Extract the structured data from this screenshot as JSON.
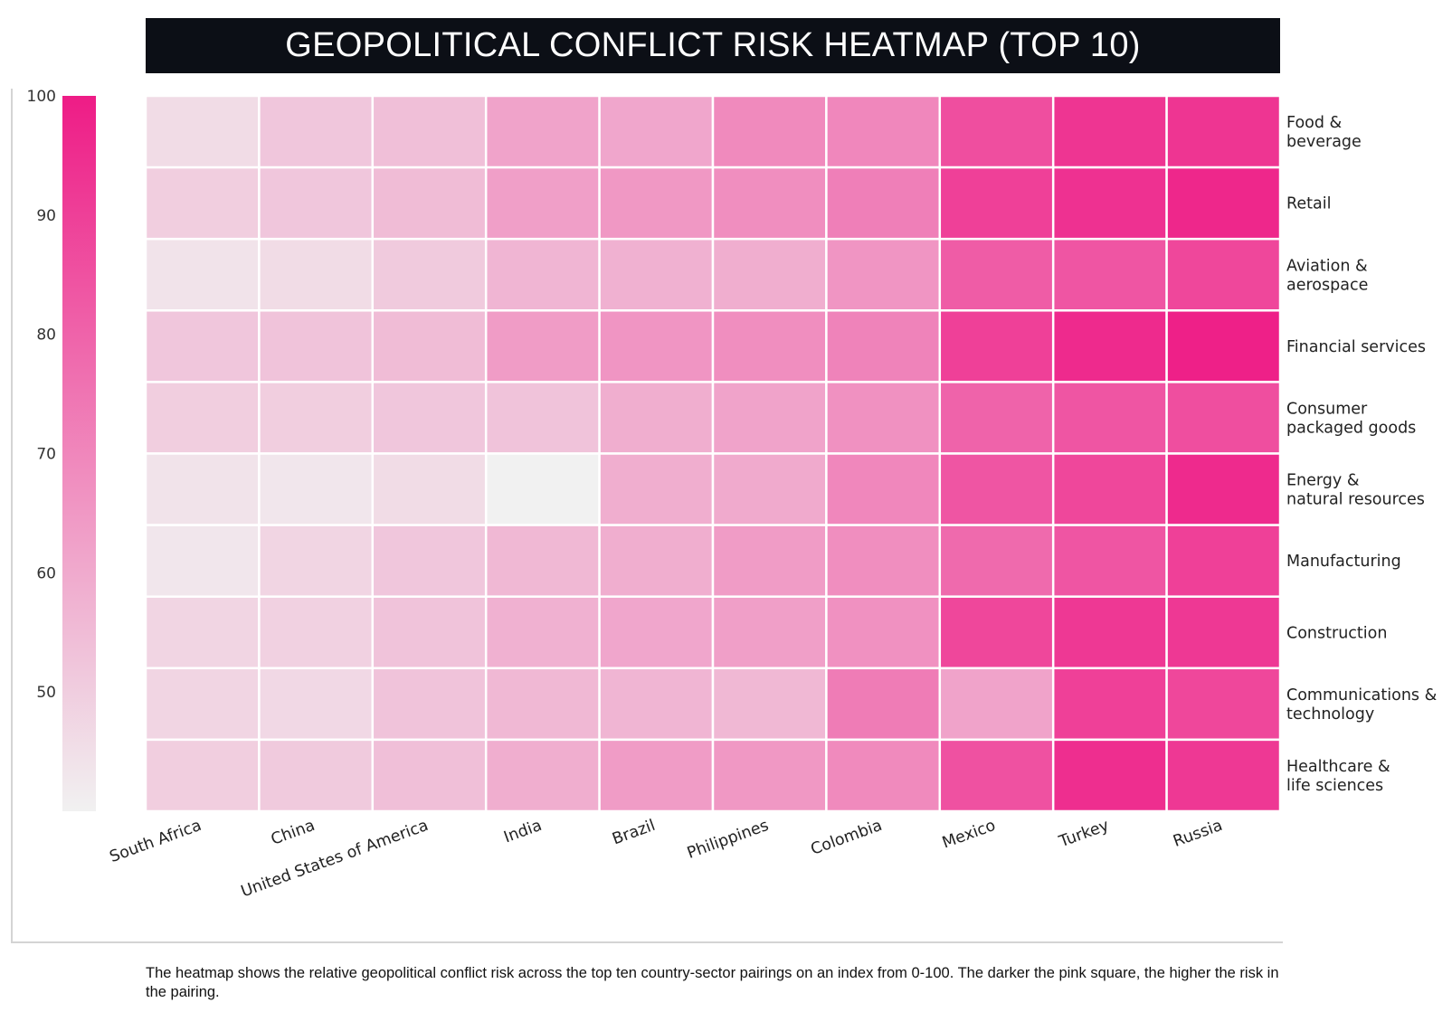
{
  "chart_data": {
    "type": "heatmap",
    "title": "GEOPOLITICAL CONFLICT RISK HEATMAP (TOP 10)",
    "columns": [
      "South Africa",
      "China",
      "United States of America",
      "India",
      "Brazil",
      "Philippines",
      "Colombia",
      "Mexico",
      "Turkey",
      "Russia"
    ],
    "rows": [
      [
        "Food &",
        "beverage"
      ],
      [
        "Retail"
      ],
      [
        "Aviation &",
        "aerospace"
      ],
      [
        "Financial services"
      ],
      [
        "Consumer",
        "packaged goods"
      ],
      [
        "Energy &",
        "natural resources"
      ],
      [
        "Manufacturing"
      ],
      [
        "Construction"
      ],
      [
        "Communications &",
        "technology"
      ],
      [
        "Healthcare &",
        "life sciences"
      ]
    ],
    "values": [
      [
        46,
        52,
        54,
        62,
        61,
        69,
        70,
        86,
        93,
        93
      ],
      [
        50,
        52,
        55,
        63,
        65,
        68,
        72,
        90,
        94,
        97
      ],
      [
        44,
        46,
        51,
        57,
        58,
        59,
        66,
        82,
        84,
        88
      ],
      [
        52,
        53,
        55,
        64,
        66,
        68,
        71,
        90,
        96,
        99
      ],
      [
        50,
        50,
        52,
        53,
        59,
        62,
        67,
        80,
        84,
        86
      ],
      [
        44,
        43,
        46,
        38,
        59,
        60,
        70,
        84,
        88,
        96
      ],
      [
        43,
        48,
        52,
        56,
        59,
        64,
        68,
        78,
        84,
        90
      ],
      [
        48,
        49,
        53,
        58,
        61,
        63,
        67,
        88,
        92,
        92
      ],
      [
        48,
        47,
        53,
        56,
        57,
        56,
        73,
        62,
        90,
        88
      ],
      [
        50,
        51,
        54,
        59,
        64,
        65,
        69,
        85,
        95,
        92
      ]
    ],
    "colorbar": {
      "min": 40,
      "max": 100,
      "ticks": [
        50,
        60,
        70,
        80,
        90,
        100
      ]
    },
    "colors": {
      "low": "#f1f1f1",
      "high": "#ee1c86",
      "grid": "#ffffff"
    },
    "caption": "The heatmap shows the relative geopolitical conflict risk across the top ten country-sector pairings on an index from 0-100. The darker the pink square, the higher the risk in the pairing."
  }
}
